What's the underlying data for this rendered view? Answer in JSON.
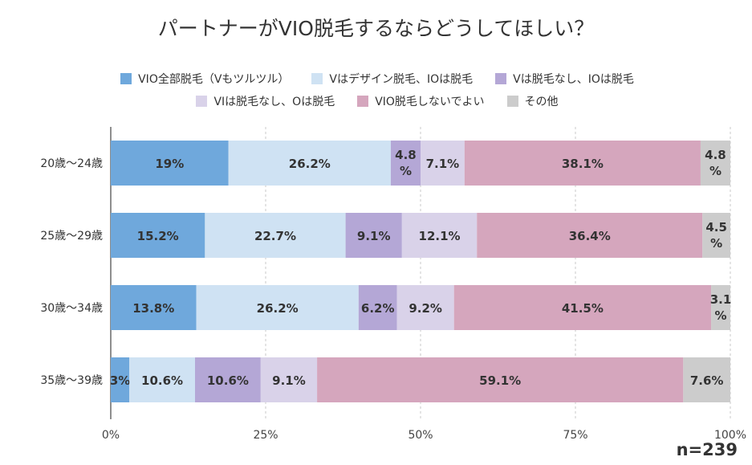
{
  "chart_data": {
    "type": "bar",
    "orientation": "horizontal",
    "stacked": "percent",
    "title": "パートナーがVIO脱毛するならどうしてほしい？",
    "categories": [
      "20歳～24歳",
      "25歳～29歳",
      "30歳～34歳",
      "35歳～39歳"
    ],
    "series": [
      {
        "name": "VIO全部脱毛（Vもツルツル）",
        "color": "#6fa8dc",
        "values": [
          19,
          15.2,
          13.8,
          3
        ],
        "labels": [
          "19%",
          "15.2%",
          "13.8%",
          "3%"
        ]
      },
      {
        "name": "Vはデザイン脱毛、IOは脱毛",
        "color": "#cfe2f3",
        "values": [
          26.2,
          22.7,
          26.2,
          10.6
        ],
        "labels": [
          "26.2%",
          "22.7%",
          "26.2%",
          "10.6%"
        ]
      },
      {
        "name": "Vは脱毛なし、IOは脱毛",
        "color": "#b4a7d6",
        "values": [
          4.8,
          9.1,
          6.2,
          10.6
        ],
        "labels": [
          "4.8%",
          "9.1%",
          "6.2%",
          "10.6%"
        ]
      },
      {
        "name": "VIは脱毛なし、Oは脱毛",
        "color": "#d9d2e9",
        "values": [
          7.1,
          12.1,
          9.2,
          9.1
        ],
        "labels": [
          "7.1%",
          "12.1%",
          "9.2%",
          "9.1%"
        ]
      },
      {
        "name": "VIO脱毛しないでよい",
        "color": "#d5a6bd",
        "values": [
          38.1,
          36.4,
          41.5,
          59.1
        ],
        "labels": [
          "38.1%",
          "36.4%",
          "41.5%",
          "59.1%"
        ]
      },
      {
        "name": "その他",
        "color": "#cccccc",
        "values": [
          4.8,
          4.5,
          3.1,
          7.6
        ],
        "labels": [
          "4.8%",
          "4.5%",
          "3.1%",
          "7.6%"
        ]
      }
    ],
    "xlim": [
      0,
      100
    ],
    "x_ticks": [
      "0%",
      "25%",
      "50%",
      "75%",
      "100%"
    ],
    "grid": true,
    "legend_position": "top"
  },
  "note": "n=239"
}
